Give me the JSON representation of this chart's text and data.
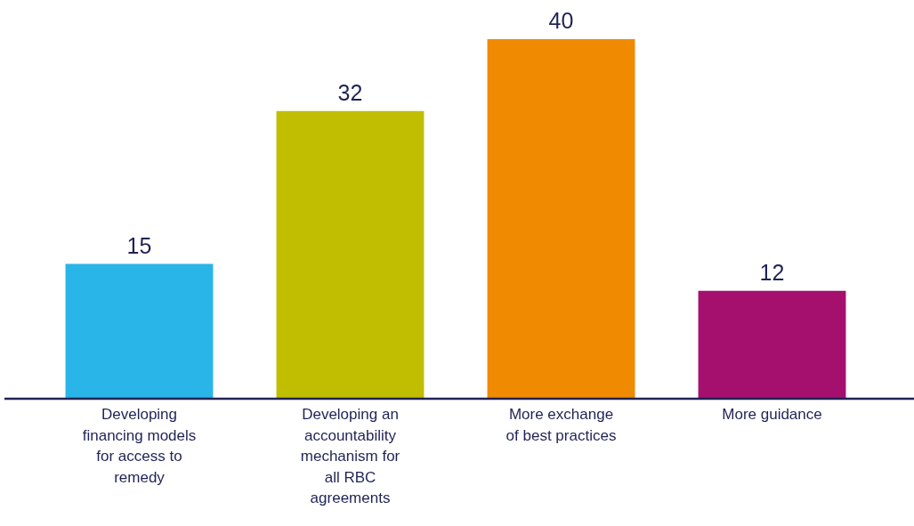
{
  "chart_data": {
    "type": "bar",
    "categories": [
      "Developing financing models for access to remedy",
      "Developing an accountability mechanism for all RBC agreements",
      "More exchange of best practices",
      "More guidance"
    ],
    "values": [
      15,
      32,
      40,
      12
    ],
    "colors": [
      "#29b5e8",
      "#c1bd00",
      "#f08a00",
      "#a5106e"
    ],
    "data_labels": true,
    "legend": false
  }
}
